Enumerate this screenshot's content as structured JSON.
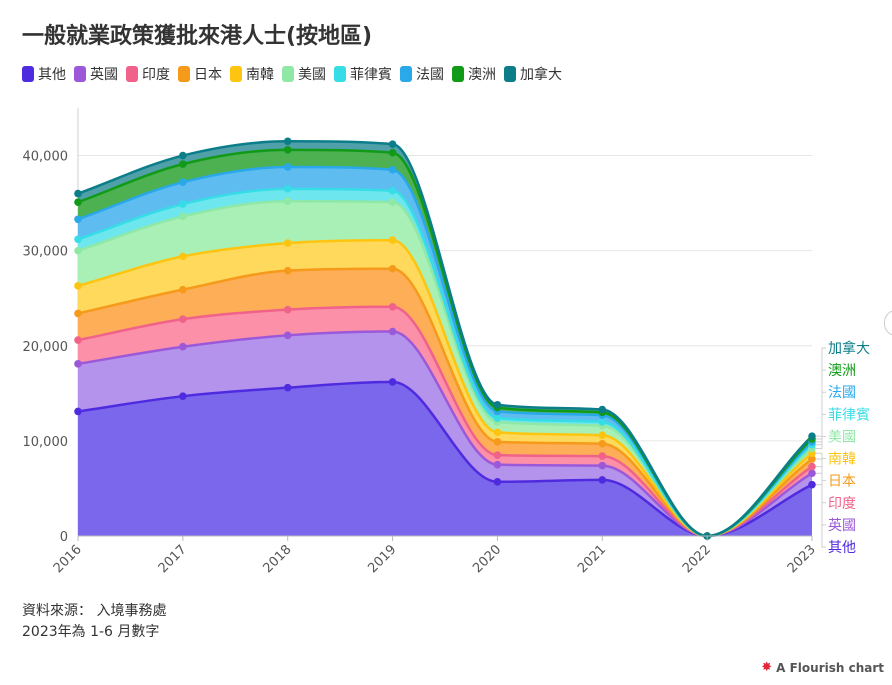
{
  "title": "一般就業政策獲批來港人士(按地區)",
  "footer": {
    "source": "資料來源： 入境事務處",
    "note": "2023年為 1-6 月數字"
  },
  "credit": "A Flourish chart",
  "chart_data": {
    "type": "area",
    "stacked": true,
    "x": [
      "2016",
      "2017",
      "2018",
      "2019",
      "2020",
      "2021",
      "2022",
      "2023"
    ],
    "ylim": [
      0,
      45000
    ],
    "yticks": [
      0,
      10000,
      20000,
      30000,
      40000
    ],
    "ytick_labels": [
      "0",
      "10,000",
      "20,000",
      "30,000",
      "40,000"
    ],
    "grid": true,
    "legend_position": "top-left",
    "series": [
      {
        "name": "其他",
        "color": "#4f2be0",
        "fill": "#7b67ec",
        "values": [
          13100,
          14700,
          15600,
          16200,
          5700,
          5900,
          0,
          5400
        ]
      },
      {
        "name": "英國",
        "color": "#9b59d9",
        "fill": "#b493ec",
        "values": [
          5000,
          5200,
          5500,
          5300,
          1800,
          1500,
          0,
          1200
        ]
      },
      {
        "name": "印度",
        "color": "#f0628a",
        "fill": "#fc90a9",
        "values": [
          2500,
          2900,
          2700,
          2600,
          1000,
          1000,
          0,
          700
        ]
      },
      {
        "name": "日本",
        "color": "#f59a1a",
        "fill": "#fdae57",
        "values": [
          2800,
          3100,
          4100,
          4000,
          1400,
          1300,
          0,
          800
        ]
      },
      {
        "name": "南韓",
        "color": "#fdc50f",
        "fill": "#fed95c",
        "values": [
          2900,
          3500,
          2900,
          3000,
          1000,
          900,
          0,
          600
        ]
      },
      {
        "name": "美國",
        "color": "#8fe8a6",
        "fill": "#a9f0b7",
        "values": [
          3700,
          4200,
          4400,
          4000,
          1100,
          1000,
          0,
          500
        ]
      },
      {
        "name": "菲律賓",
        "color": "#36dde6",
        "fill": "#6de6ee",
        "values": [
          1200,
          1300,
          1300,
          1200,
          400,
          400,
          0,
          400
        ]
      },
      {
        "name": "法國",
        "color": "#29a8ea",
        "fill": "#5fbcf1",
        "values": [
          2100,
          2300,
          2300,
          2200,
          700,
          700,
          0,
          300
        ]
      },
      {
        "name": "澳洲",
        "color": "#119a18",
        "fill": "#4db051",
        "values": [
          1800,
          1900,
          1800,
          1800,
          400,
          300,
          0,
          300
        ]
      },
      {
        "name": "加拿大",
        "color": "#0c7e8a",
        "fill": "#4fa0a8",
        "values": [
          900,
          900,
          900,
          900,
          300,
          300,
          0,
          300
        ]
      }
    ]
  }
}
